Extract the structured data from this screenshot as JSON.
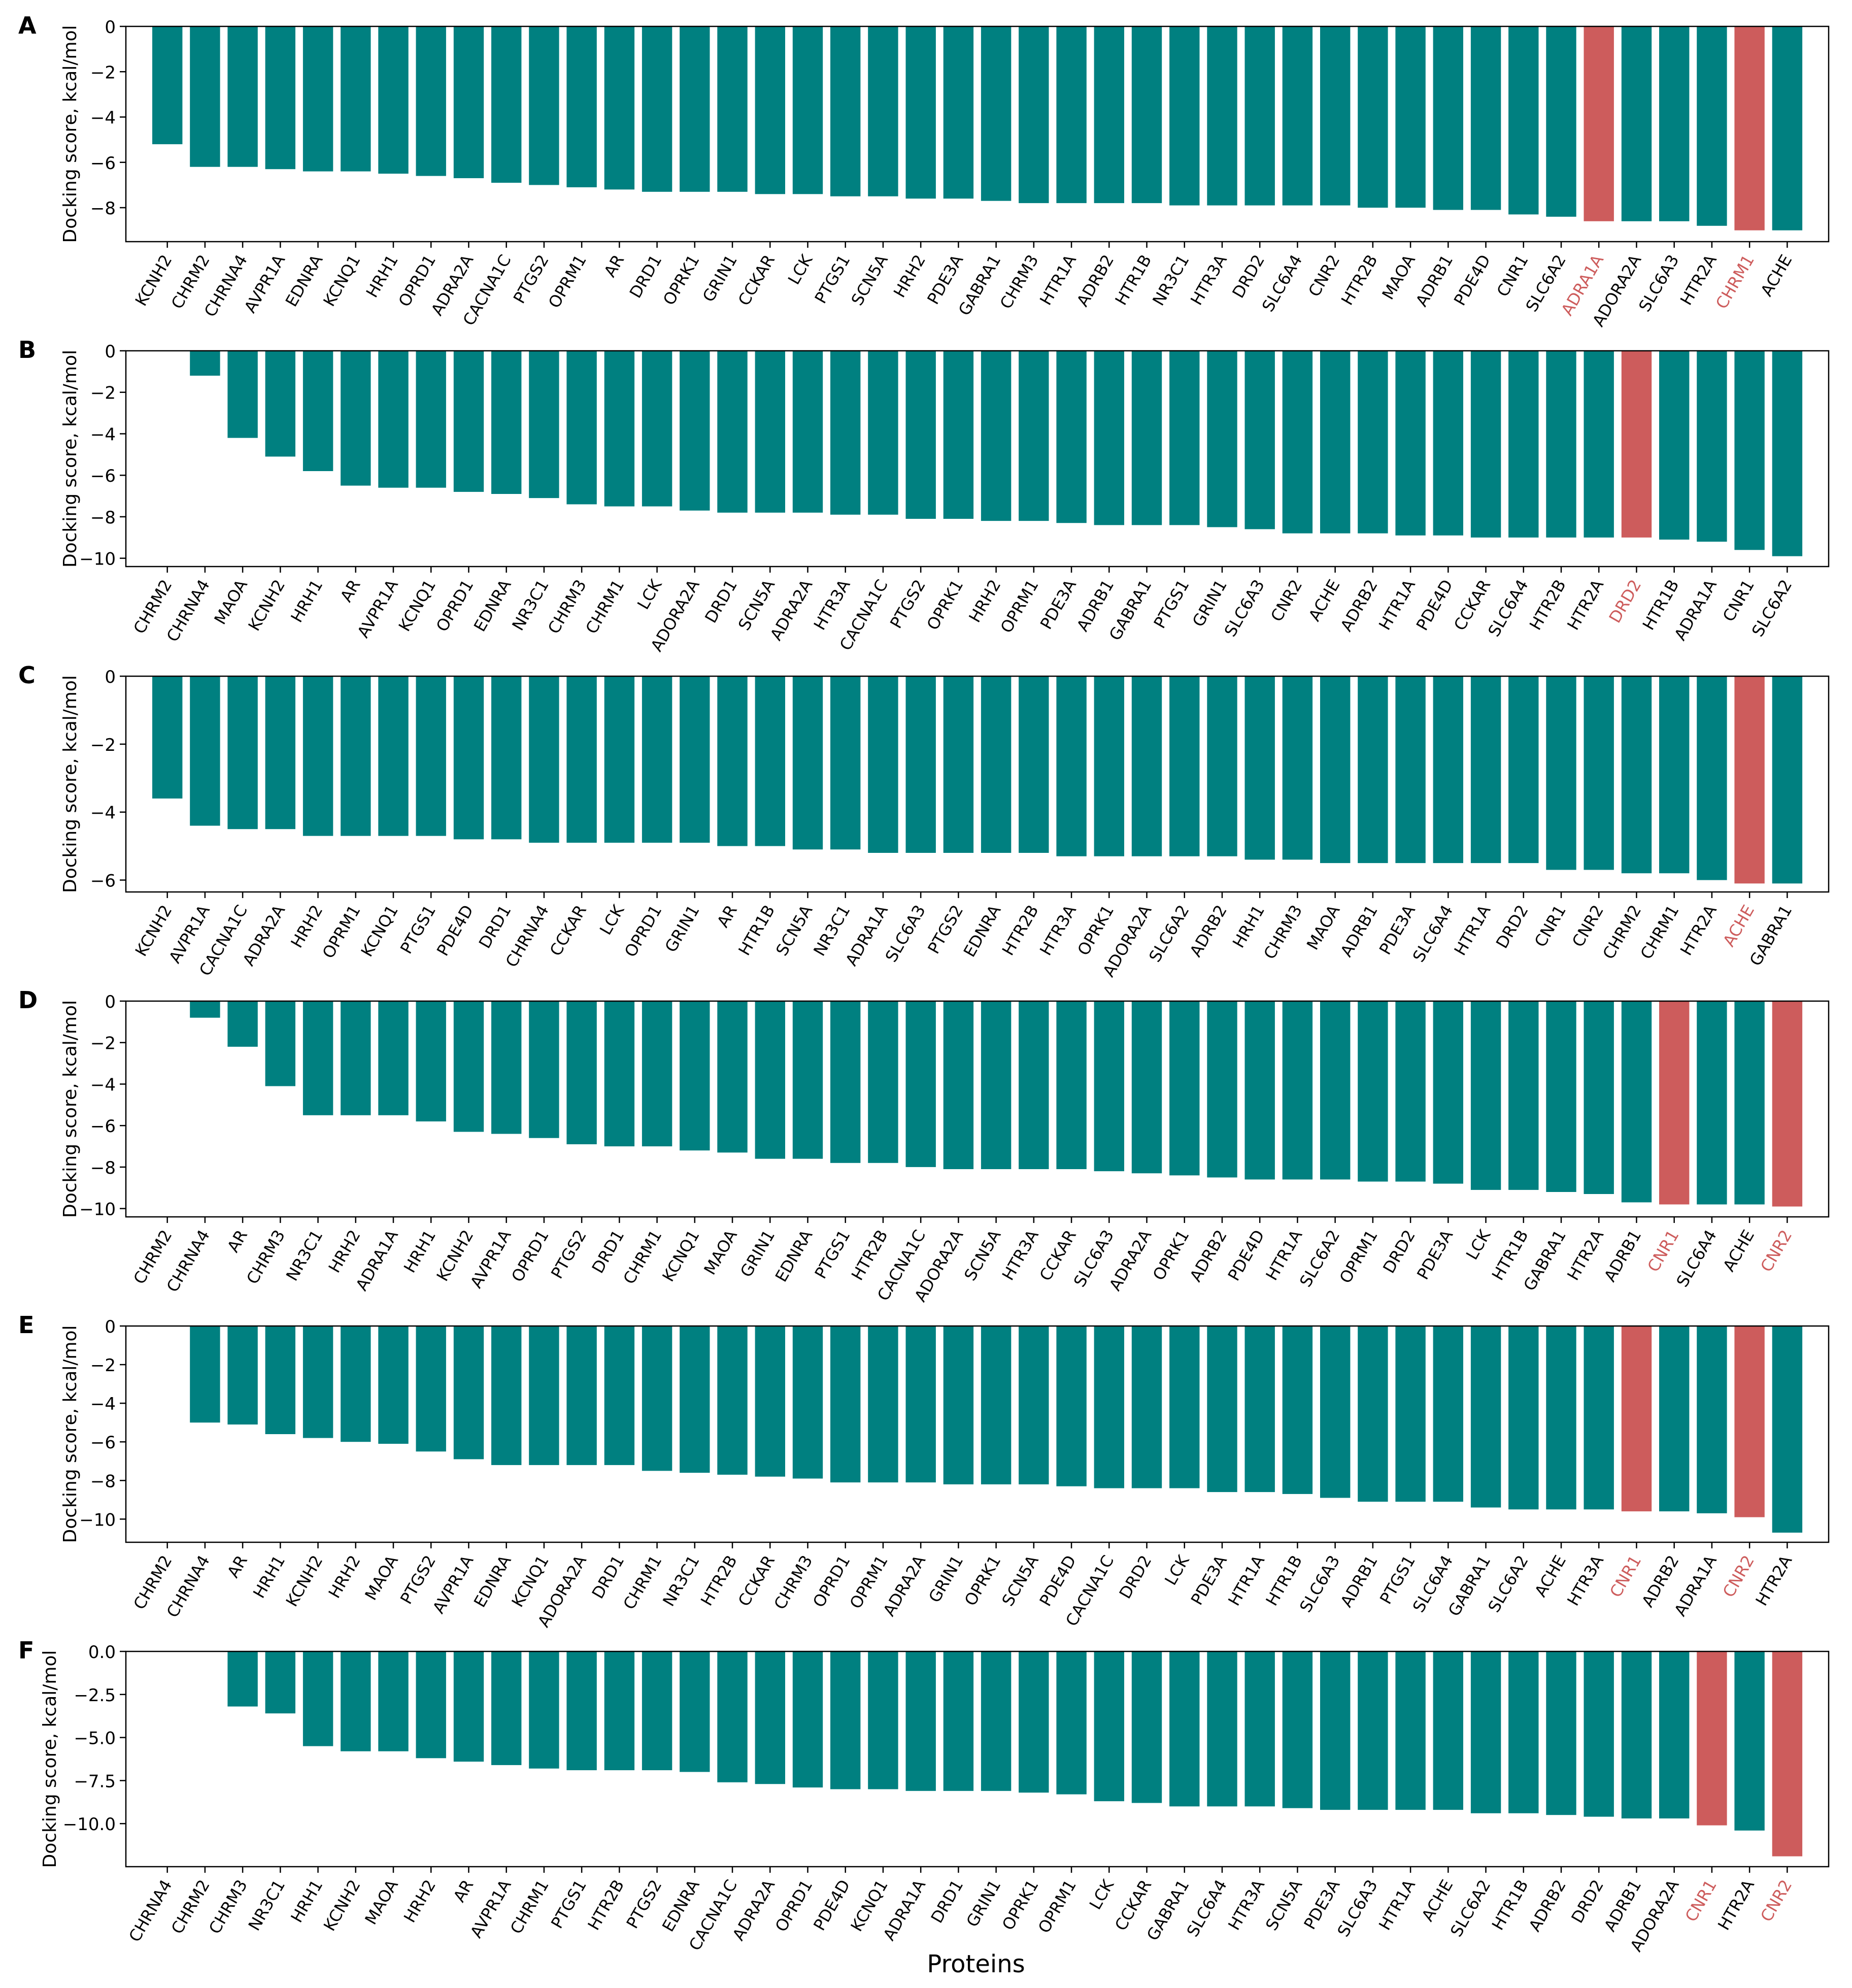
{
  "figure": {
    "ylabel": "Docking score, kcal/mol",
    "xlabel": "Proteins"
  },
  "colors": {
    "bar": "#008080",
    "highlight": "#CD5C5C",
    "text": "#000000",
    "axis": "#000000"
  },
  "chart_data": [
    {
      "type": "bar",
      "panel": "A",
      "ylabel": "Docking score, kcal/mol",
      "ylim": [
        -9.5,
        0
      ],
      "yticks": [
        0,
        -2,
        -4,
        -6,
        -8
      ],
      "ytick_labels": [
        "0",
        "−2",
        "−4",
        "−6",
        "−8"
      ],
      "categories": [
        "KCNH2",
        "CHRM2",
        "CHRNA4",
        "AVPR1A",
        "EDNRA",
        "KCNQ1",
        "HRH1",
        "OPRD1",
        "ADRA2A",
        "CACNA1C",
        "PTGS2",
        "OPRM1",
        "AR",
        "DRD1",
        "OPRK1",
        "GRIN1",
        "CCKAR",
        "LCK",
        "PTGS1",
        "SCN5A",
        "HRH2",
        "PDE3A",
        "GABRA1",
        "CHRM3",
        "HTR1A",
        "ADRB2",
        "HTR1B",
        "NR3C1",
        "HTR3A",
        "DRD2",
        "SLC6A4",
        "CNR2",
        "HTR2B",
        "MAOA",
        "ADRB1",
        "PDE4D",
        "CNR1",
        "SLC6A2",
        "ADRA1A",
        "ADORA2A",
        "SLC6A3",
        "HTR2A",
        "CHRM1",
        "ACHE"
      ],
      "values": [
        -5.2,
        -6.2,
        -6.2,
        -6.3,
        -6.4,
        -6.4,
        -6.5,
        -6.6,
        -6.7,
        -6.9,
        -7.0,
        -7.1,
        -7.2,
        -7.3,
        -7.3,
        -7.3,
        -7.4,
        -7.4,
        -7.5,
        -7.5,
        -7.6,
        -7.6,
        -7.7,
        -7.8,
        -7.8,
        -7.8,
        -7.8,
        -7.9,
        -7.9,
        -7.9,
        -7.9,
        -7.9,
        -8.0,
        -8.0,
        -8.1,
        -8.1,
        -8.3,
        -8.4,
        -8.6,
        -8.6,
        -8.6,
        -8.8,
        -9.0,
        -9.0
      ],
      "highlighted": [
        "ADRA1A",
        "CHRM1"
      ]
    },
    {
      "type": "bar",
      "panel": "B",
      "ylabel": "Docking score, kcal/mol",
      "ylim": [
        -10.4,
        0
      ],
      "yticks": [
        0,
        -2,
        -4,
        -6,
        -8,
        -10
      ],
      "ytick_labels": [
        "0",
        "−2",
        "−4",
        "−6",
        "−8",
        "−10"
      ],
      "categories": [
        "CHRM2",
        "CHRNA4",
        "MAOA",
        "KCNH2",
        "HRH1",
        "AR",
        "AVPR1A",
        "KCNQ1",
        "OPRD1",
        "EDNRA",
        "NR3C1",
        "CHRM3",
        "CHRM1",
        "LCK",
        "ADORA2A",
        "DRD1",
        "SCN5A",
        "ADRA2A",
        "HTR3A",
        "CACNA1C",
        "PTGS2",
        "OPRK1",
        "HRH2",
        "OPRM1",
        "PDE3A",
        "ADRB1",
        "GABRA1",
        "PTGS1",
        "GRIN1",
        "SLC6A3",
        "CNR2",
        "ACHE",
        "ADRB2",
        "HTR1A",
        "PDE4D",
        "CCKAR",
        "SLC6A4",
        "HTR2B",
        "HTR2A",
        "DRD2",
        "HTR1B",
        "ADRA1A",
        "CNR1",
        "SLC6A2"
      ],
      "values": [
        0,
        -1.2,
        -4.2,
        -5.1,
        -5.8,
        -6.5,
        -6.6,
        -6.6,
        -6.8,
        -6.9,
        -7.1,
        -7.4,
        -7.5,
        -7.5,
        -7.7,
        -7.8,
        -7.8,
        -7.8,
        -7.9,
        -7.9,
        -8.1,
        -8.1,
        -8.2,
        -8.2,
        -8.3,
        -8.4,
        -8.4,
        -8.4,
        -8.5,
        -8.6,
        -8.8,
        -8.8,
        -8.8,
        -8.9,
        -8.9,
        -9.0,
        -9.0,
        -9.0,
        -9.0,
        -9.0,
        -9.1,
        -9.2,
        -9.6,
        -9.9
      ],
      "highlighted": [
        "DRD2"
      ]
    },
    {
      "type": "bar",
      "panel": "C",
      "ylabel": "Docking score, kcal/mol",
      "ylim": [
        -6.35,
        0
      ],
      "yticks": [
        0,
        -2,
        -4,
        -6
      ],
      "ytick_labels": [
        "0",
        "−2",
        "−4",
        "−6"
      ],
      "categories": [
        "KCNH2",
        "AVPR1A",
        "CACNA1C",
        "ADRA2A",
        "HRH2",
        "OPRM1",
        "KCNQ1",
        "PTGS1",
        "PDE4D",
        "DRD1",
        "CHRNA4",
        "CCKAR",
        "LCK",
        "OPRD1",
        "GRIN1",
        "AR",
        "HTR1B",
        "SCN5A",
        "NR3C1",
        "ADRA1A",
        "SLC6A3",
        "PTGS2",
        "EDNRA",
        "HTR2B",
        "HTR3A",
        "OPRK1",
        "ADORA2A",
        "SLC6A2",
        "ADRB2",
        "HRH1",
        "CHRM3",
        "MAOA",
        "ADRB1",
        "PDE3A",
        "SLC6A4",
        "HTR1A",
        "DRD2",
        "CNR1",
        "CNR2",
        "CHRM2",
        "CHRM1",
        "HTR2A",
        "ACHE",
        "GABRA1"
      ],
      "values": [
        -3.6,
        -4.4,
        -4.5,
        -4.5,
        -4.7,
        -4.7,
        -4.7,
        -4.7,
        -4.8,
        -4.8,
        -4.9,
        -4.9,
        -4.9,
        -4.9,
        -4.9,
        -5.0,
        -5.0,
        -5.1,
        -5.1,
        -5.2,
        -5.2,
        -5.2,
        -5.2,
        -5.2,
        -5.3,
        -5.3,
        -5.3,
        -5.3,
        -5.3,
        -5.4,
        -5.4,
        -5.5,
        -5.5,
        -5.5,
        -5.5,
        -5.5,
        -5.5,
        -5.7,
        -5.7,
        -5.8,
        -5.8,
        -6.0,
        -6.1,
        -6.1
      ],
      "highlighted": [
        "ACHE"
      ]
    },
    {
      "type": "bar",
      "panel": "D",
      "ylabel": "Docking score, kcal/mol",
      "ylim": [
        -10.4,
        0
      ],
      "yticks": [
        0,
        -2,
        -4,
        -6,
        -8,
        -10
      ],
      "ytick_labels": [
        "0",
        "−2",
        "−4",
        "−6",
        "−8",
        "−10"
      ],
      "categories": [
        "CHRM2",
        "CHRNA4",
        "AR",
        "CHRM3",
        "NR3C1",
        "HRH2",
        "ADRA1A",
        "HRH1",
        "KCNH2",
        "AVPR1A",
        "OPRD1",
        "PTGS2",
        "DRD1",
        "CHRM1",
        "KCNQ1",
        "MAOA",
        "GRIN1",
        "EDNRA",
        "PTGS1",
        "HTR2B",
        "CACNA1C",
        "ADORA2A",
        "SCN5A",
        "HTR3A",
        "CCKAR",
        "SLC6A3",
        "ADRA2A",
        "OPRK1",
        "ADRB2",
        "PDE4D",
        "HTR1A",
        "SLC6A2",
        "OPRM1",
        "DRD2",
        "PDE3A",
        "LCK",
        "HTR1B",
        "GABRA1",
        "HTR2A",
        "ADRB1",
        "CNR1",
        "SLC6A4",
        "ACHE",
        "CNR2"
      ],
      "values": [
        0,
        -0.8,
        -2.2,
        -4.1,
        -5.5,
        -5.5,
        -5.5,
        -5.8,
        -6.3,
        -6.4,
        -6.6,
        -6.9,
        -7.0,
        -7.0,
        -7.2,
        -7.3,
        -7.6,
        -7.6,
        -7.8,
        -7.8,
        -8.0,
        -8.1,
        -8.1,
        -8.1,
        -8.1,
        -8.2,
        -8.3,
        -8.4,
        -8.5,
        -8.6,
        -8.6,
        -8.6,
        -8.7,
        -8.7,
        -8.8,
        -9.1,
        -9.1,
        -9.2,
        -9.3,
        -9.7,
        -9.8,
        -9.8,
        -9.8,
        -9.9
      ],
      "highlighted": [
        "CNR1",
        "CNR2"
      ]
    },
    {
      "type": "bar",
      "panel": "E",
      "ylabel": "Docking score, kcal/mol",
      "ylim": [
        -11.2,
        0
      ],
      "yticks": [
        0,
        -2,
        -4,
        -6,
        -8,
        -10
      ],
      "ytick_labels": [
        "0",
        "−2",
        "−4",
        "−6",
        "−8",
        "−10"
      ],
      "categories": [
        "CHRM2",
        "CHRNA4",
        "AR",
        "HRH1",
        "KCNH2",
        "HRH2",
        "MAOA",
        "PTGS2",
        "AVPR1A",
        "EDNRA",
        "KCNQ1",
        "ADORA2A",
        "DRD1",
        "CHRM1",
        "NR3C1",
        "HTR2B",
        "CCKAR",
        "CHRM3",
        "OPRD1",
        "OPRM1",
        "ADRA2A",
        "GRIN1",
        "OPRK1",
        "SCN5A",
        "PDE4D",
        "CACNA1C",
        "DRD2",
        "LCK",
        "PDE3A",
        "HTR1A",
        "HTR1B",
        "SLC6A3",
        "ADRB1",
        "PTGS1",
        "SLC6A4",
        "GABRA1",
        "SLC6A2",
        "ACHE",
        "HTR3A",
        "CNR1",
        "ADRB2",
        "ADRA1A",
        "CNR2",
        "HTR2A"
      ],
      "values": [
        0,
        -5.0,
        -5.1,
        -5.6,
        -5.8,
        -6.0,
        -6.1,
        -6.5,
        -6.9,
        -7.2,
        -7.2,
        -7.2,
        -7.2,
        -7.5,
        -7.6,
        -7.7,
        -7.8,
        -7.9,
        -8.1,
        -8.1,
        -8.1,
        -8.2,
        -8.2,
        -8.2,
        -8.3,
        -8.4,
        -8.4,
        -8.4,
        -8.6,
        -8.6,
        -8.7,
        -8.9,
        -9.1,
        -9.1,
        -9.1,
        -9.4,
        -9.5,
        -9.5,
        -9.5,
        -9.6,
        -9.6,
        -9.7,
        -9.9,
        -10.7
      ],
      "highlighted": [
        "CNR1",
        "CNR2"
      ]
    },
    {
      "type": "bar",
      "panel": "F",
      "ylabel": "Docking score, kcal/mol",
      "ylim": [
        -12.5,
        0
      ],
      "yticks": [
        0,
        -2.5,
        -5,
        -7.5,
        -10
      ],
      "ytick_labels": [
        "0.0",
        "−2.5",
        "−5.0",
        "−7.5",
        "−10.0"
      ],
      "categories": [
        "CHRNA4",
        "CHRM2",
        "CHRM3",
        "NR3C1",
        "HRH1",
        "KCNH2",
        "MAOA",
        "HRH2",
        "AR",
        "AVPR1A",
        "CHRM1",
        "PTGS1",
        "HTR2B",
        "PTGS2",
        "EDNRA",
        "CACNA1C",
        "ADRA2A",
        "OPRD1",
        "PDE4D",
        "KCNQ1",
        "ADRA1A",
        "DRD1",
        "GRIN1",
        "OPRK1",
        "OPRM1",
        "LCK",
        "CCKAR",
        "GABRA1",
        "SLC6A4",
        "HTR3A",
        "SCN5A",
        "PDE3A",
        "SLC6A3",
        "HTR1A",
        "ACHE",
        "SLC6A2",
        "HTR1B",
        "ADRB2",
        "DRD2",
        "ADRB1",
        "ADORA2A",
        "CNR1",
        "HTR2A",
        "CNR2"
      ],
      "values": [
        0,
        0,
        -3.2,
        -3.6,
        -5.5,
        -5.8,
        -5.8,
        -6.2,
        -6.4,
        -6.6,
        -6.8,
        -6.9,
        -6.9,
        -6.9,
        -7.0,
        -7.6,
        -7.7,
        -7.9,
        -8.0,
        -8.0,
        -8.1,
        -8.1,
        -8.1,
        -8.2,
        -8.3,
        -8.7,
        -8.8,
        -9.0,
        -9.0,
        -9.0,
        -9.1,
        -9.2,
        -9.2,
        -9.2,
        -9.2,
        -9.4,
        -9.4,
        -9.5,
        -9.6,
        -9.7,
        -9.7,
        -10.1,
        -10.4,
        -11.9
      ],
      "highlighted": [
        "CNR1",
        "CNR2"
      ]
    }
  ]
}
